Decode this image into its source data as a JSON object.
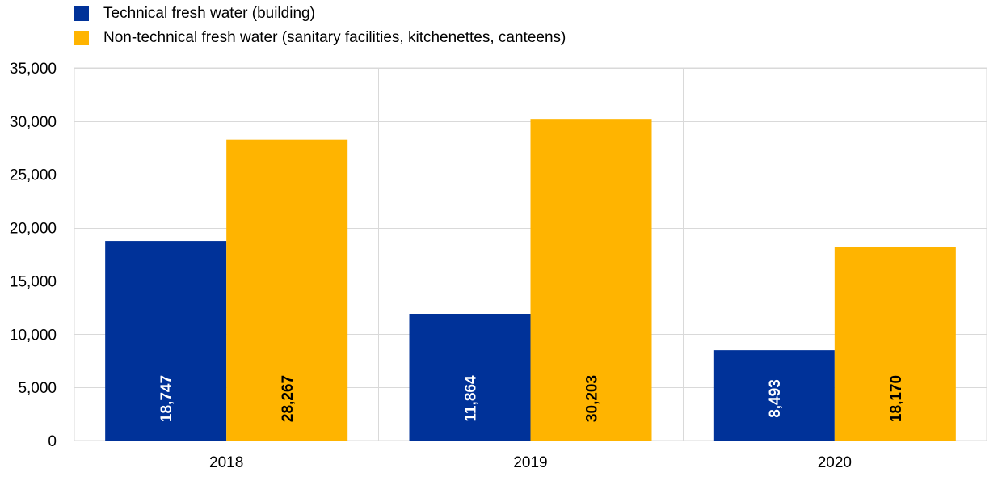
{
  "legend": {
    "items": [
      {
        "label": "Technical fresh water (building)",
        "color": "#003299"
      },
      {
        "label": "Non-technical fresh water (sanitary facilities, kitchenettes, canteens)",
        "color": "#FFB400"
      }
    ]
  },
  "chart_data": {
    "type": "bar",
    "categories": [
      "2018",
      "2019",
      "2020"
    ],
    "series": [
      {
        "name": "Technical fresh water (building)",
        "values": [
          18747,
          11864,
          8493
        ],
        "color": "#003299",
        "labels": [
          "18,747",
          "11,864",
          "8,493"
        ],
        "label_color": "#FFFFFF"
      },
      {
        "name": "Non-technical fresh water (sanitary facilities, kitchenettes, canteens)",
        "values": [
          28267,
          30203,
          18170
        ],
        "color": "#FFB400",
        "labels": [
          "28,267",
          "30,203",
          "18,170"
        ],
        "label_color": "#000000"
      }
    ],
    "ylim": [
      0,
      35000
    ],
    "yticks": [
      0,
      5000,
      10000,
      15000,
      20000,
      25000,
      30000,
      35000
    ],
    "ytick_labels": [
      "0",
      "5,000",
      "10,000",
      "15,000",
      "20,000",
      "25,000",
      "30,000",
      "35,000"
    ],
    "grid": true,
    "legend_position": "top-left",
    "title": "",
    "xlabel": "",
    "ylabel": ""
  }
}
